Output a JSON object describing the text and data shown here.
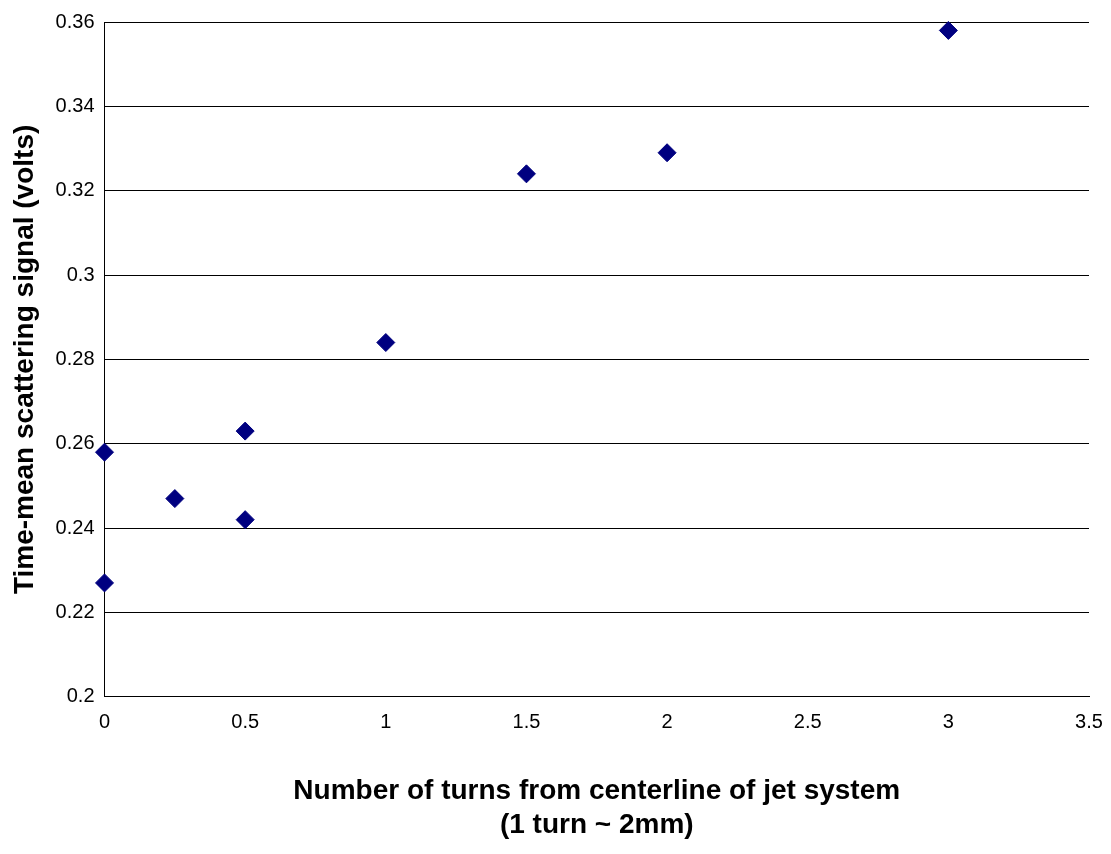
{
  "chart_data": {
    "type": "scatter",
    "xlabel": "Number of turns from centerline of jet system\n(1 turn ~ 2mm)",
    "ylabel": "Time-mean scattering signal (volts)",
    "x": [
      0,
      0,
      0.25,
      0.5,
      0.5,
      1,
      1.5,
      2,
      3
    ],
    "series": [
      {
        "color": "#000080",
        "values": [
          0.258,
          0.227,
          0.247,
          0.263,
          0.242,
          0.284,
          0.324,
          0.329,
          0.358
        ]
      }
    ],
    "xlim": [
      0,
      3.5
    ],
    "xticks": [
      0,
      0.5,
      1,
      1.5,
      2,
      2.5,
      3,
      3.5
    ],
    "ylim": [
      0.2,
      0.36
    ],
    "yticks": [
      0.2,
      0.22,
      0.24,
      0.26,
      0.28,
      0.3,
      0.32,
      0.34,
      0.36
    ],
    "grid": "y",
    "legend": false,
    "marker": "diamond"
  }
}
